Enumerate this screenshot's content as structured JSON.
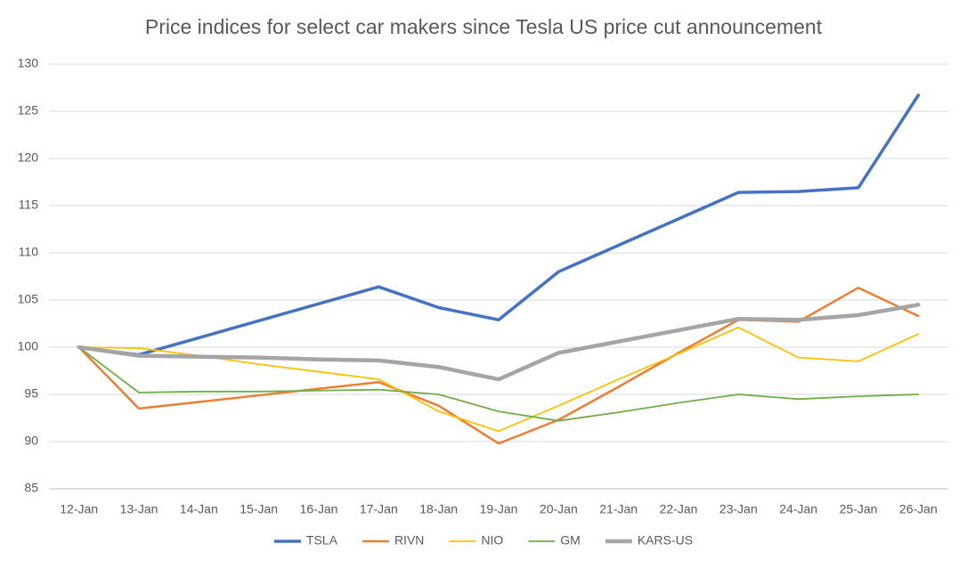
{
  "chart_data": {
    "type": "line",
    "title": "Price indices for select car makers since Tesla US price cut announcement",
    "categories": [
      "12-Jan",
      "13-Jan",
      "14-Jan",
      "15-Jan",
      "16-Jan",
      "17-Jan",
      "18-Jan",
      "19-Jan",
      "20-Jan",
      "21-Jan",
      "22-Jan",
      "23-Jan",
      "24-Jan",
      "25-Jan",
      "26-Jan"
    ],
    "series": [
      {
        "name": "TSLA",
        "color": "#4472c4",
        "values": [
          100,
          99.2,
          101.0,
          102.8,
          104.6,
          106.4,
          104.2,
          102.9,
          108.0,
          110.8,
          113.6,
          116.4,
          116.5,
          116.9,
          126.7
        ]
      },
      {
        "name": "RIVN",
        "color": "#ed7d31",
        "values": [
          100,
          93.5,
          94.2,
          94.9,
          95.6,
          96.3,
          93.8,
          89.8,
          92.3,
          95.8,
          99.4,
          102.9,
          102.7,
          106.3,
          103.3
        ]
      },
      {
        "name": "NIO",
        "color": "#ffc000",
        "values": [
          100,
          99.9,
          99.1,
          98.2,
          97.4,
          96.6,
          93.2,
          91.1,
          93.8,
          96.6,
          99.3,
          102.1,
          98.9,
          98.5,
          101.4
        ]
      },
      {
        "name": "GM",
        "color": "#70ad47",
        "values": [
          100,
          95.2,
          95.3,
          95.3,
          95.4,
          95.5,
          95.0,
          93.2,
          92.2,
          93.1,
          94.1,
          95.0,
          94.5,
          94.8,
          95.0
        ]
      },
      {
        "name": "KARS-US",
        "color": "#a5a5a5",
        "values": [
          100,
          99.1,
          99.0,
          98.9,
          98.7,
          98.6,
          97.9,
          96.6,
          99.4,
          100.6,
          101.8,
          103.0,
          102.9,
          103.4,
          104.5
        ]
      }
    ],
    "ylim": [
      85,
      130
    ],
    "yticks": [
      85,
      90,
      95,
      100,
      105,
      110,
      115,
      120,
      125,
      130
    ],
    "grid": true,
    "legend": "bottom"
  }
}
